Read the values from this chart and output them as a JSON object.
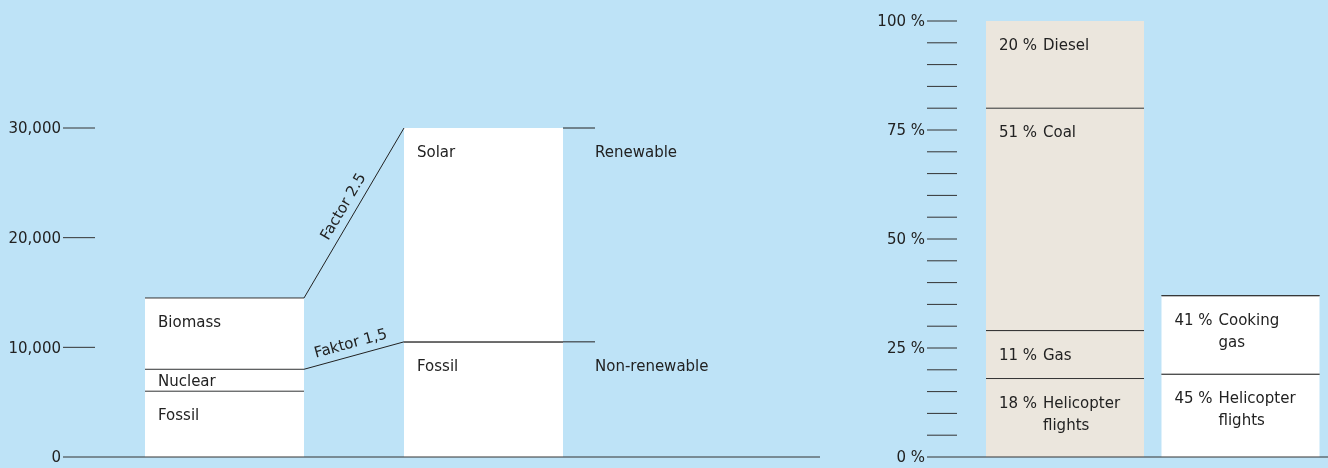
{
  "chart_data": [
    {
      "type": "bar",
      "stacked": true,
      "categories": [
        null,
        null
      ],
      "tick_labels": "y",
      "ylim": [
        0,
        30000
      ],
      "yticks": [
        {
          "value": 0,
          "label": "0"
        },
        {
          "value": 10000,
          "label": "10,000"
        },
        {
          "value": 20000,
          "label": "20,000"
        },
        {
          "value": 30000,
          "label": "30,000"
        }
      ],
      "series": [
        {
          "name": "Fossil",
          "color": "#ffffff",
          "values": [
            6000,
            10500
          ]
        },
        {
          "name": "Nuclear",
          "color": "#ffffff",
          "values": [
            2000,
            null
          ]
        },
        {
          "name": "Biomass",
          "color": "#ffffff",
          "values": [
            6500,
            null
          ]
        },
        {
          "name": "Solar",
          "color": "#ffffff",
          "values": [
            null,
            19500
          ]
        }
      ],
      "annotations": [
        "Factor 2.5",
        "Faktor 1,5",
        "Renewable",
        "Non-renewable"
      ]
    },
    {
      "type": "bar",
      "stacked": true,
      "categories": [
        null,
        null
      ],
      "tick_labels": "y",
      "annotations": [
        "45 %",
        "41 %"
      ],
      "ylim": [
        0,
        100
      ],
      "yticks": [
        {
          "value": 0,
          "label": "0 %"
        },
        {
          "value": 25,
          "label": "25 %"
        },
        {
          "value": 50,
          "label": "50 %"
        },
        {
          "value": 75,
          "label": "75 %"
        },
        {
          "value": 100,
          "label": "100 %"
        }
      ],
      "series": [
        {
          "name": "Helicopter flights",
          "colors": [
            "#ebe6dd",
            "#ffffff"
          ],
          "values": [
            18,
            19
          ],
          "value_labels": [
            "18 %",
            null
          ]
        },
        {
          "name": "Gas",
          "color": "#ebe6dd",
          "values": [
            11,
            null
          ],
          "value_labels": [
            "11 %",
            null
          ]
        },
        {
          "name": "Cooking gas",
          "color": "#ffffff",
          "values": [
            null,
            18
          ]
        },
        {
          "name": "Coal",
          "color": "#ebe6dd",
          "values": [
            51,
            null
          ],
          "value_labels": [
            "51 %",
            null
          ]
        },
        {
          "name": "Diesel",
          "color": "#ebe6dd",
          "values": [
            20,
            null
          ],
          "value_labels": [
            "20 %",
            null
          ]
        }
      ]
    }
  ]
}
